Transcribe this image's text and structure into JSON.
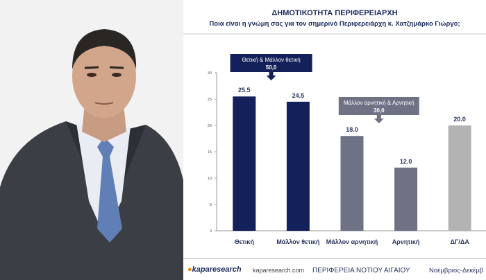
{
  "slide": {
    "title": "ΔΗΜΟΤΙΚΟΤΗΤΑ ΠΕΡΙΦΕΡΕΙΑΡΧΗ",
    "subtitle": "Ποια είναι η γνώμη σας για τον σημερινό Περιφερειάρχη κ. Χατζημάρκο Γιώργο;"
  },
  "chart_data": {
    "type": "bar",
    "categories": [
      "Θετική",
      "Μάλλον θετική",
      "Μάλλον αρνητική",
      "Αρνητική",
      "ΔΓ/ΔΑ"
    ],
    "values": [
      25.5,
      24.5,
      18.0,
      12.0,
      20.0
    ],
    "value_labels": [
      "25.5",
      "24.5",
      "18.0",
      "12.0",
      "20.0"
    ],
    "ylim": [
      0,
      30
    ],
    "yticks": [
      "0",
      "5",
      "10",
      "15",
      "20",
      "25",
      "30"
    ],
    "bar_colors": [
      "#13205a",
      "#13205a",
      "#6f7285",
      "#6f7285",
      "#b3b3b3"
    ],
    "callouts": [
      {
        "line1": "Θετική & Μάλλον θετική",
        "line2": "50,0",
        "color": "#13205a"
      },
      {
        "line1": "Μάλλον αρνητική & Αρνητική",
        "line2": "30,0",
        "color": "#6f7285"
      }
    ]
  },
  "footer": {
    "logo": "kaparesearch",
    "website": "kaparesearch.com",
    "region": "ΠΕΡΙΦΕΡΕΙΑ ΝΟΤΙΟΥ ΑΙΓΑΙΟΥ",
    "date": "Νοέμβριος-Δεκέμβ"
  }
}
